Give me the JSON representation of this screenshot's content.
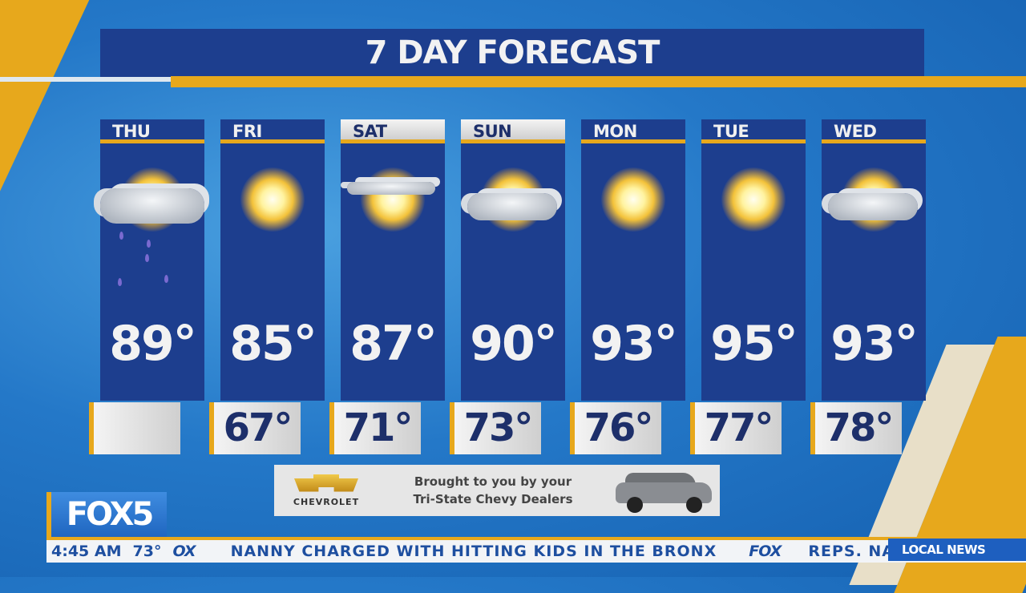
{
  "title": "7 DAY FORECAST",
  "days": [
    {
      "day": "THU",
      "high": "89°",
      "low": "",
      "icon": "sun-cloud-rain-icon",
      "weekend": false
    },
    {
      "day": "FRI",
      "high": "85°",
      "low": "67°",
      "icon": "sun-icon",
      "weekend": false
    },
    {
      "day": "SAT",
      "high": "87°",
      "low": "71°",
      "icon": "sun-thin-cloud-icon",
      "weekend": true
    },
    {
      "day": "SUN",
      "high": "90°",
      "low": "73°",
      "icon": "sun-cloud-icon",
      "weekend": true
    },
    {
      "day": "MON",
      "high": "93°",
      "low": "76°",
      "icon": "sun-icon",
      "weekend": false
    },
    {
      "day": "TUE",
      "high": "95°",
      "low": "77°",
      "icon": "sun-icon",
      "weekend": false
    },
    {
      "day": "WED",
      "high": "93°",
      "low": "78°",
      "icon": "sun-cloud-icon",
      "weekend": false
    }
  ],
  "sponsor": {
    "brand": "CHEVROLET",
    "line1": "Brought to you by your",
    "line2": "Tri-State Chevy Dealers"
  },
  "station_logo": "FOX5",
  "ticker": {
    "time": "4:45 AM",
    "temp": "73°",
    "fox1": "OX",
    "headline": "NANNY CHARGED WITH HITTING KIDS IN THE BRONX",
    "fox2": "FOX",
    "next": "REPS. NADL",
    "section": "LOCAL NEWS"
  },
  "colors": {
    "panel": "#1d3e8e",
    "accent": "#e7a81c",
    "sky": "#2478c8"
  }
}
